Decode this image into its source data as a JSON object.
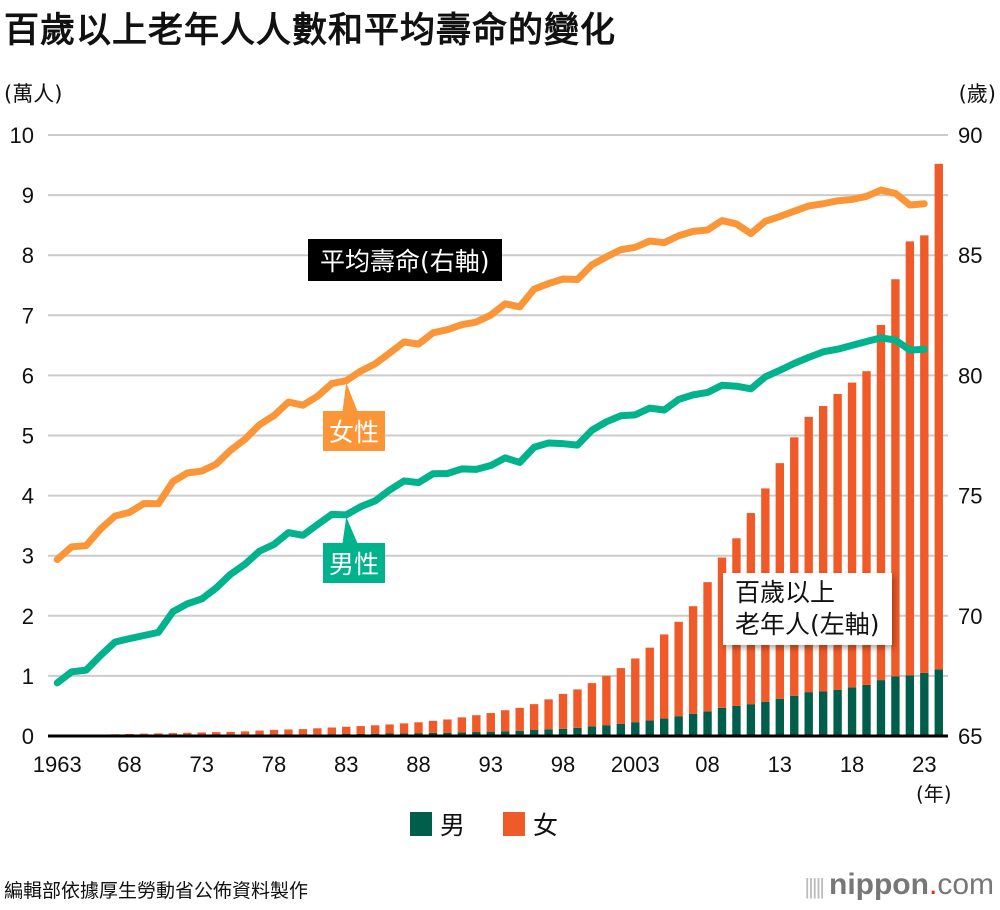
{
  "chart_data": {
    "type": "bar",
    "title": "百歲以上老年人人數和平均壽命的變化",
    "left_axis": {
      "label": "(萬人)",
      "range": [
        0,
        10
      ],
      "ticks": [
        "0",
        "1",
        "2",
        "3",
        "4",
        "5",
        "6",
        "7",
        "8",
        "9",
        "10"
      ]
    },
    "right_axis": {
      "label": "(歲)",
      "range": [
        65,
        90
      ],
      "ticks": [
        "65",
        "70",
        "75",
        "80",
        "85",
        "90"
      ]
    },
    "xlabel": "(年)",
    "x_tick_labels": [
      {
        "year": 1963,
        "label": "1963"
      },
      {
        "year": 1968,
        "label": "68"
      },
      {
        "year": 1973,
        "label": "73"
      },
      {
        "year": 1978,
        "label": "78"
      },
      {
        "year": 1983,
        "label": "83"
      },
      {
        "year": 1988,
        "label": "88"
      },
      {
        "year": 1993,
        "label": "93"
      },
      {
        "year": 1998,
        "label": "98"
      },
      {
        "year": 2003,
        "label": "2003"
      },
      {
        "year": 2008,
        "label": "08"
      },
      {
        "year": 2013,
        "label": "13"
      },
      {
        "year": 2018,
        "label": "18"
      },
      {
        "year": 2023,
        "label": "23"
      }
    ],
    "grid": true,
    "legend_position": "bottom-center",
    "years": [
      1963,
      1964,
      1965,
      1966,
      1967,
      1968,
      1969,
      1970,
      1971,
      1972,
      1973,
      1974,
      1975,
      1976,
      1977,
      1978,
      1979,
      1980,
      1981,
      1982,
      1983,
      1984,
      1985,
      1986,
      1987,
      1988,
      1989,
      1990,
      1991,
      1992,
      1993,
      1994,
      1995,
      1996,
      1997,
      1998,
      1999,
      2000,
      2001,
      2002,
      2003,
      2004,
      2005,
      2006,
      2007,
      2008,
      2009,
      2010,
      2011,
      2012,
      2013,
      2014,
      2015,
      2016,
      2017,
      2018,
      2019,
      2020,
      2021,
      2022,
      2023,
      2024
    ],
    "series": [
      {
        "name": "男",
        "kind": "stacked-bar",
        "axis": "left",
        "color": "#005e4b",
        "values": [
          0.005,
          0.005,
          0.005,
          0.006,
          0.007,
          0.008,
          0.009,
          0.01,
          0.011,
          0.012,
          0.013,
          0.014,
          0.015,
          0.017,
          0.02,
          0.022,
          0.024,
          0.025,
          0.028,
          0.031,
          0.033,
          0.035,
          0.038,
          0.042,
          0.045,
          0.048,
          0.052,
          0.055,
          0.06,
          0.066,
          0.072,
          0.079,
          0.088,
          0.1,
          0.11,
          0.12,
          0.135,
          0.16,
          0.18,
          0.2,
          0.23,
          0.26,
          0.29,
          0.33,
          0.37,
          0.41,
          0.47,
          0.5,
          0.53,
          0.57,
          0.62,
          0.67,
          0.73,
          0.74,
          0.77,
          0.81,
          0.85,
          0.93,
          0.99,
          1.01,
          1.05,
          1.11
        ]
      },
      {
        "name": "女",
        "kind": "stacked-bar",
        "axis": "left",
        "color": "#f05a28",
        "values": [
          0.012,
          0.014,
          0.015,
          0.018,
          0.022,
          0.026,
          0.03,
          0.034,
          0.038,
          0.042,
          0.046,
          0.05,
          0.054,
          0.06,
          0.07,
          0.08,
          0.085,
          0.09,
          0.1,
          0.11,
          0.12,
          0.13,
          0.14,
          0.15,
          0.165,
          0.18,
          0.2,
          0.22,
          0.25,
          0.28,
          0.31,
          0.35,
          0.38,
          0.43,
          0.5,
          0.58,
          0.64,
          0.72,
          0.82,
          0.93,
          1.06,
          1.21,
          1.4,
          1.57,
          1.79,
          2.15,
          2.5,
          2.79,
          3.18,
          3.55,
          3.92,
          4.3,
          4.58,
          4.75,
          4.92,
          5.07,
          5.22,
          5.91,
          6.61,
          7.22,
          7.28,
          8.41
        ]
      },
      {
        "name": "女性",
        "kind": "line",
        "axis": "right",
        "color": "#fb9638",
        "values": [
          72.34,
          72.87,
          72.92,
          73.61,
          74.15,
          74.3,
          74.67,
          74.66,
          75.58,
          75.94,
          76.02,
          76.31,
          76.89,
          77.35,
          77.95,
          78.33,
          78.89,
          78.76,
          79.13,
          79.66,
          79.78,
          80.18,
          80.48,
          80.93,
          81.39,
          81.3,
          81.77,
          81.9,
          82.11,
          82.22,
          82.51,
          82.98,
          82.85,
          83.59,
          83.82,
          84.01,
          83.99,
          84.6,
          84.93,
          85.23,
          85.33,
          85.59,
          85.52,
          85.81,
          85.99,
          86.05,
          86.44,
          86.3,
          85.9,
          86.41,
          86.61,
          86.83,
          87.05,
          87.14,
          87.26,
          87.32,
          87.45,
          87.71,
          87.57,
          87.09,
          87.14
        ],
        "last_year": 2023
      },
      {
        "name": "男性",
        "kind": "line",
        "axis": "right",
        "color": "#00b38c",
        "values": [
          67.21,
          67.67,
          67.74,
          68.35,
          68.91,
          69.05,
          69.18,
          69.31,
          70.17,
          70.5,
          70.7,
          71.16,
          71.73,
          72.15,
          72.69,
          72.97,
          73.46,
          73.35,
          73.79,
          74.22,
          74.2,
          74.54,
          74.78,
          75.23,
          75.61,
          75.54,
          75.91,
          75.92,
          76.11,
          76.09,
          76.25,
          76.57,
          76.38,
          77.01,
          77.19,
          77.16,
          77.1,
          77.72,
          78.07,
          78.32,
          78.36,
          78.64,
          78.56,
          79.0,
          79.19,
          79.29,
          79.59,
          79.55,
          79.44,
          79.94,
          80.21,
          80.5,
          80.75,
          80.98,
          81.09,
          81.25,
          81.41,
          81.56,
          81.47,
          81.05,
          81.09
        ],
        "last_year": 2023
      }
    ],
    "annotations": [
      {
        "text": "平均壽命(右軸)",
        "style": "black-box"
      },
      {
        "text": "女性",
        "style": "orange-box",
        "points_to": "女性"
      },
      {
        "text": "男性",
        "style": "green-box",
        "points_to": "男性"
      },
      {
        "text": "百歲以上\n老年人(左軸)",
        "style": "white-box"
      }
    ]
  },
  "labels": {
    "title": "百歲以上老年人人數和平均壽命的變化",
    "unit_left": "(萬人)",
    "unit_right": "(歲)",
    "x_unit": "(年)",
    "life_title": "平均壽命(右軸)",
    "female_line": "女性",
    "male_line": "男性",
    "cent_line1": "百歲以上",
    "cent_line2": "老年人(左軸)",
    "legend_male": "男",
    "legend_female": "女",
    "source": "編輯部依據厚生勞動省公佈資料製作",
    "brand_main": "nippon",
    "brand_dot": ".",
    "brand_tld": "com"
  },
  "colors": {
    "male_bar": "#005e4b",
    "female_bar": "#f05a28",
    "female_line": "#fb9638",
    "male_line": "#00b38c",
    "grid": "#cccccc"
  }
}
